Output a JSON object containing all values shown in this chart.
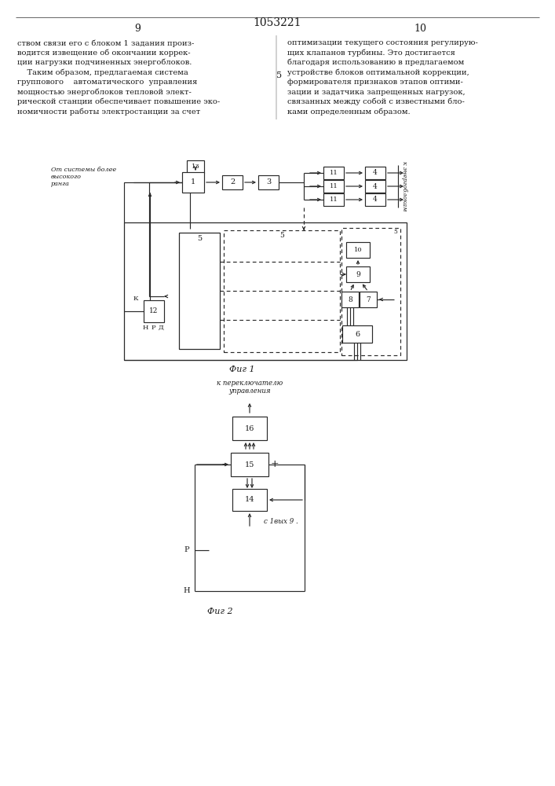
{
  "title": "1053221",
  "page_left": "9",
  "page_right": "10",
  "fig1_caption": "Фиг 1",
  "fig2_caption": "Фиг 2",
  "line_color": "#2a2a2a",
  "text_color": "#1a1a1a",
  "margin_num": "5"
}
